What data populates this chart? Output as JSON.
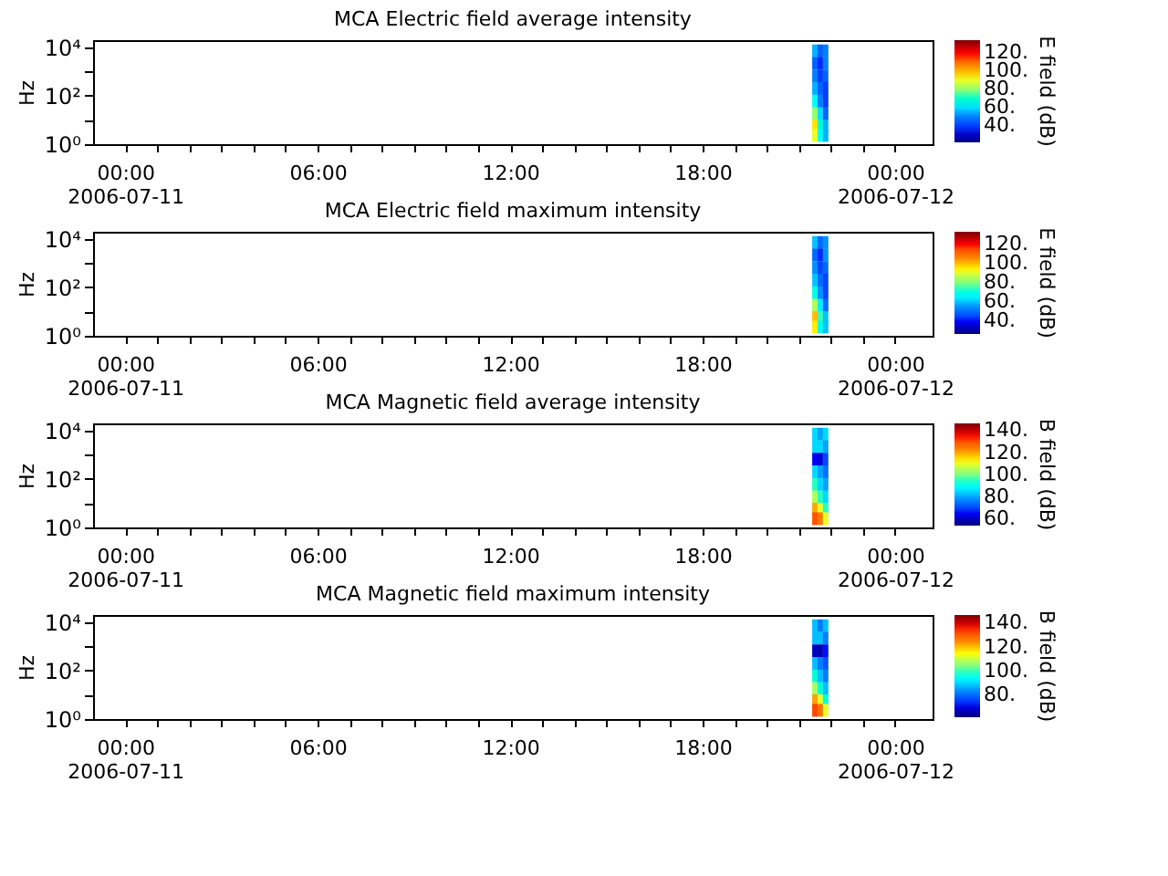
{
  "chart_data": [
    {
      "type": "scatter",
      "marker": "square",
      "title": "MCA  Electric field average intensity",
      "ylabel": "Hz",
      "clabel": "E field (dB)",
      "x": [
        "2006-07-11T21:30",
        "2006-07-11T21:40",
        "2006-07-11T21:50",
        "2006-07-11T21:30",
        "2006-07-11T21:40",
        "2006-07-11T21:50",
        "2006-07-11T21:30",
        "2006-07-11T21:40",
        "2006-07-11T21:50",
        "2006-07-11T21:30",
        "2006-07-11T21:40",
        "2006-07-11T21:50",
        "2006-07-11T21:30",
        "2006-07-11T21:40",
        "2006-07-11T21:50",
        "2006-07-11T21:30",
        "2006-07-11T21:40",
        "2006-07-11T21:50",
        "2006-07-11T21:30",
        "2006-07-11T21:40",
        "2006-07-11T21:50",
        "2006-07-11T21:30",
        "2006-07-11T21:40",
        "2006-07-11T21:50"
      ],
      "values": [
        7200,
        7200,
        7200,
        2200,
        2200,
        2200,
        660,
        660,
        660,
        200,
        200,
        200,
        60,
        60,
        60,
        18,
        18,
        18,
        5.7,
        5.7,
        5.7,
        2.3,
        2.3,
        2.3
      ],
      "cvalues": [
        55,
        45,
        50,
        45,
        38,
        50,
        50,
        40,
        45,
        55,
        45,
        40,
        65,
        50,
        40,
        80,
        60,
        45,
        95,
        70,
        55,
        90,
        65,
        55
      ],
      "xlim": [
        "2006-07-10T23:00",
        "2006-07-12T01:10"
      ],
      "xticks": [
        {
          "value": "2006-07-11T00:00",
          "label": "00:00\n2006-07-11"
        },
        {
          "value": "2006-07-11T01:00",
          "label": null
        },
        {
          "value": "2006-07-11T02:00",
          "label": null
        },
        {
          "value": "2006-07-11T03:00",
          "label": null
        },
        {
          "value": "2006-07-11T04:00",
          "label": null
        },
        {
          "value": "2006-07-11T05:00",
          "label": null
        },
        {
          "value": "2006-07-11T06:00",
          "label": "06:00"
        },
        {
          "value": "2006-07-11T07:00",
          "label": null
        },
        {
          "value": "2006-07-11T08:00",
          "label": null
        },
        {
          "value": "2006-07-11T09:00",
          "label": null
        },
        {
          "value": "2006-07-11T10:00",
          "label": null
        },
        {
          "value": "2006-07-11T11:00",
          "label": null
        },
        {
          "value": "2006-07-11T12:00",
          "label": "12:00"
        },
        {
          "value": "2006-07-11T13:00",
          "label": null
        },
        {
          "value": "2006-07-11T14:00",
          "label": null
        },
        {
          "value": "2006-07-11T15:00",
          "label": null
        },
        {
          "value": "2006-07-11T16:00",
          "label": null
        },
        {
          "value": "2006-07-11T17:00",
          "label": null
        },
        {
          "value": "2006-07-11T18:00",
          "label": "18:00"
        },
        {
          "value": "2006-07-11T19:00",
          "label": null
        },
        {
          "value": "2006-07-11T20:00",
          "label": null
        },
        {
          "value": "2006-07-11T21:00",
          "label": null
        },
        {
          "value": "2006-07-11T22:00",
          "label": null
        },
        {
          "value": "2006-07-11T23:00",
          "label": null
        },
        {
          "value": "2006-07-12T00:00",
          "label": "00:00\n2006-07-12"
        }
      ],
      "ylim": [
        1,
        20000
      ],
      "yticks": [
        {
          "value": 1,
          "label": "10⁰"
        },
        {
          "value": 10,
          "label": null
        },
        {
          "value": 100,
          "label": "10²"
        },
        {
          "value": 1000,
          "label": null
        },
        {
          "value": 10000,
          "label": "10⁴"
        }
      ],
      "log": "y",
      "clim": [
        22,
        134
      ],
      "cticks": [
        {
          "value": 40,
          "label": "40."
        },
        {
          "value": 60,
          "label": "60."
        },
        {
          "value": 80,
          "label": "80."
        },
        {
          "value": 100,
          "label": "100."
        },
        {
          "value": 120,
          "label": "120."
        }
      ]
    },
    {
      "type": "scatter",
      "marker": "square",
      "title": "MCA  Electric field maximum intensity",
      "ylabel": "Hz",
      "clabel": "E field (dB)",
      "x": [
        "2006-07-11T21:30",
        "2006-07-11T21:40",
        "2006-07-11T21:50",
        "2006-07-11T21:30",
        "2006-07-11T21:40",
        "2006-07-11T21:50",
        "2006-07-11T21:30",
        "2006-07-11T21:40",
        "2006-07-11T21:50",
        "2006-07-11T21:30",
        "2006-07-11T21:40",
        "2006-07-11T21:50",
        "2006-07-11T21:30",
        "2006-07-11T21:40",
        "2006-07-11T21:50",
        "2006-07-11T21:30",
        "2006-07-11T21:40",
        "2006-07-11T21:50",
        "2006-07-11T21:30",
        "2006-07-11T21:40",
        "2006-07-11T21:50",
        "2006-07-11T21:30",
        "2006-07-11T21:40",
        "2006-07-11T21:50"
      ],
      "values": [
        7200,
        7200,
        7200,
        2200,
        2200,
        2200,
        660,
        660,
        660,
        200,
        200,
        200,
        60,
        60,
        60,
        18,
        18,
        18,
        5.7,
        5.7,
        5.7,
        2.3,
        2.3,
        2.3
      ],
      "cvalues": [
        60,
        50,
        55,
        50,
        42,
        55,
        55,
        45,
        50,
        60,
        50,
        45,
        70,
        55,
        45,
        85,
        65,
        50,
        100,
        75,
        60,
        95,
        70,
        60
      ],
      "xlim": [
        "2006-07-10T23:00",
        "2006-07-12T01:10"
      ],
      "xticks": [
        {
          "value": "2006-07-11T00:00",
          "label": "00:00\n2006-07-11"
        },
        {
          "value": "2006-07-11T01:00",
          "label": null
        },
        {
          "value": "2006-07-11T02:00",
          "label": null
        },
        {
          "value": "2006-07-11T03:00",
          "label": null
        },
        {
          "value": "2006-07-11T04:00",
          "label": null
        },
        {
          "value": "2006-07-11T05:00",
          "label": null
        },
        {
          "value": "2006-07-11T06:00",
          "label": "06:00"
        },
        {
          "value": "2006-07-11T07:00",
          "label": null
        },
        {
          "value": "2006-07-11T08:00",
          "label": null
        },
        {
          "value": "2006-07-11T09:00",
          "label": null
        },
        {
          "value": "2006-07-11T10:00",
          "label": null
        },
        {
          "value": "2006-07-11T11:00",
          "label": null
        },
        {
          "value": "2006-07-11T12:00",
          "label": "12:00"
        },
        {
          "value": "2006-07-11T13:00",
          "label": null
        },
        {
          "value": "2006-07-11T14:00",
          "label": null
        },
        {
          "value": "2006-07-11T15:00",
          "label": null
        },
        {
          "value": "2006-07-11T16:00",
          "label": null
        },
        {
          "value": "2006-07-11T17:00",
          "label": null
        },
        {
          "value": "2006-07-11T18:00",
          "label": "18:00"
        },
        {
          "value": "2006-07-11T19:00",
          "label": null
        },
        {
          "value": "2006-07-11T20:00",
          "label": null
        },
        {
          "value": "2006-07-11T21:00",
          "label": null
        },
        {
          "value": "2006-07-11T22:00",
          "label": null
        },
        {
          "value": "2006-07-11T23:00",
          "label": null
        },
        {
          "value": "2006-07-12T00:00",
          "label": "00:00\n2006-07-12"
        }
      ],
      "ylim": [
        1,
        20000
      ],
      "yticks": [
        {
          "value": 1,
          "label": "10⁰"
        },
        {
          "value": 10,
          "label": null
        },
        {
          "value": 100,
          "label": "10²"
        },
        {
          "value": 1000,
          "label": null
        },
        {
          "value": 10000,
          "label": "10⁴"
        }
      ],
      "log": "y",
      "clim": [
        27,
        133
      ],
      "cticks": [
        {
          "value": 40,
          "label": "40."
        },
        {
          "value": 60,
          "label": "60."
        },
        {
          "value": 80,
          "label": "80."
        },
        {
          "value": 100,
          "label": "100."
        },
        {
          "value": 120,
          "label": "120."
        }
      ]
    },
    {
      "type": "scatter",
      "marker": "square",
      "title": "MCA  Magnetic field average intensity",
      "ylabel": "Hz",
      "clabel": "B field (dB)",
      "x": [
        "2006-07-11T21:30",
        "2006-07-11T21:40",
        "2006-07-11T21:50",
        "2006-07-11T21:30",
        "2006-07-11T21:40",
        "2006-07-11T21:50",
        "2006-07-11T21:30",
        "2006-07-11T21:40",
        "2006-07-11T21:50",
        "2006-07-11T21:30",
        "2006-07-11T21:40",
        "2006-07-11T21:50",
        "2006-07-11T21:30",
        "2006-07-11T21:40",
        "2006-07-11T21:50",
        "2006-07-11T21:30",
        "2006-07-11T21:40",
        "2006-07-11T21:50",
        "2006-07-11T21:30",
        "2006-07-11T21:40",
        "2006-07-11T21:50",
        "2006-07-11T21:30",
        "2006-07-11T21:40",
        "2006-07-11T21:50"
      ],
      "values": [
        7200,
        7200,
        7200,
        2200,
        2200,
        2200,
        660,
        660,
        660,
        200,
        200,
        200,
        60,
        60,
        60,
        18,
        18,
        18,
        5.7,
        5.7,
        5.7,
        2.3,
        2.3,
        2.3
      ],
      "cvalues": [
        85,
        80,
        85,
        85,
        85,
        80,
        65,
        62,
        70,
        85,
        80,
        75,
        95,
        85,
        80,
        105,
        95,
        85,
        120,
        110,
        95,
        130,
        125,
        110
      ],
      "xlim": [
        "2006-07-10T23:00",
        "2006-07-12T01:10"
      ],
      "xticks": [
        {
          "value": "2006-07-11T00:00",
          "label": "00:00\n2006-07-11"
        },
        {
          "value": "2006-07-11T01:00",
          "label": null
        },
        {
          "value": "2006-07-11T02:00",
          "label": null
        },
        {
          "value": "2006-07-11T03:00",
          "label": null
        },
        {
          "value": "2006-07-11T04:00",
          "label": null
        },
        {
          "value": "2006-07-11T05:00",
          "label": null
        },
        {
          "value": "2006-07-11T06:00",
          "label": "06:00"
        },
        {
          "value": "2006-07-11T07:00",
          "label": null
        },
        {
          "value": "2006-07-11T08:00",
          "label": null
        },
        {
          "value": "2006-07-11T09:00",
          "label": null
        },
        {
          "value": "2006-07-11T10:00",
          "label": null
        },
        {
          "value": "2006-07-11T11:00",
          "label": null
        },
        {
          "value": "2006-07-11T12:00",
          "label": "12:00"
        },
        {
          "value": "2006-07-11T13:00",
          "label": null
        },
        {
          "value": "2006-07-11T14:00",
          "label": null
        },
        {
          "value": "2006-07-11T15:00",
          "label": null
        },
        {
          "value": "2006-07-11T16:00",
          "label": null
        },
        {
          "value": "2006-07-11T17:00",
          "label": null
        },
        {
          "value": "2006-07-11T18:00",
          "label": "18:00"
        },
        {
          "value": "2006-07-11T19:00",
          "label": null
        },
        {
          "value": "2006-07-11T20:00",
          "label": null
        },
        {
          "value": "2006-07-11T21:00",
          "label": null
        },
        {
          "value": "2006-07-11T22:00",
          "label": null
        },
        {
          "value": "2006-07-11T23:00",
          "label": null
        },
        {
          "value": "2006-07-12T00:00",
          "label": "00:00\n2006-07-12"
        }
      ],
      "ylim": [
        1,
        20000
      ],
      "yticks": [
        {
          "value": 1,
          "label": "10⁰"
        },
        {
          "value": 10,
          "label": null
        },
        {
          "value": 100,
          "label": "10²"
        },
        {
          "value": 1000,
          "label": null
        },
        {
          "value": 10000,
          "label": "10⁴"
        }
      ],
      "log": "y",
      "clim": [
        54,
        147
      ],
      "cticks": [
        {
          "value": 60,
          "label": "60."
        },
        {
          "value": 80,
          "label": "80."
        },
        {
          "value": 100,
          "label": "100."
        },
        {
          "value": 120,
          "label": "120."
        },
        {
          "value": 140,
          "label": "140."
        }
      ]
    },
    {
      "type": "scatter",
      "marker": "square",
      "title": "MCA  Magnetic field maximum intensity",
      "ylabel": "Hz",
      "clabel": "B field (dB)",
      "x": [
        "2006-07-11T21:30",
        "2006-07-11T21:40",
        "2006-07-11T21:50",
        "2006-07-11T21:30",
        "2006-07-11T21:40",
        "2006-07-11T21:50",
        "2006-07-11T21:30",
        "2006-07-11T21:40",
        "2006-07-11T21:50",
        "2006-07-11T21:30",
        "2006-07-11T21:40",
        "2006-07-11T21:50",
        "2006-07-11T21:30",
        "2006-07-11T21:40",
        "2006-07-11T21:50",
        "2006-07-11T21:30",
        "2006-07-11T21:40",
        "2006-07-11T21:50",
        "2006-07-11T21:30",
        "2006-07-11T21:40",
        "2006-07-11T21:50",
        "2006-07-11T21:30",
        "2006-07-11T21:40",
        "2006-07-11T21:50"
      ],
      "values": [
        7200,
        7200,
        7200,
        2200,
        2200,
        2200,
        660,
        660,
        660,
        200,
        200,
        200,
        60,
        60,
        60,
        18,
        18,
        18,
        5.7,
        5.7,
        5.7,
        2.3,
        2.3,
        2.3
      ],
      "cvalues": [
        88,
        83,
        88,
        88,
        88,
        83,
        68,
        66,
        73,
        88,
        83,
        78,
        98,
        88,
        83,
        108,
        98,
        88,
        123,
        113,
        98,
        133,
        128,
        113
      ],
      "xlim": [
        "2006-07-10T23:00",
        "2006-07-12T01:10"
      ],
      "xticks": [
        {
          "value": "2006-07-11T00:00",
          "label": "00:00\n2006-07-11"
        },
        {
          "value": "2006-07-11T01:00",
          "label": null
        },
        {
          "value": "2006-07-11T02:00",
          "label": null
        },
        {
          "value": "2006-07-11T03:00",
          "label": null
        },
        {
          "value": "2006-07-11T04:00",
          "label": null
        },
        {
          "value": "2006-07-11T05:00",
          "label": null
        },
        {
          "value": "2006-07-11T06:00",
          "label": "06:00"
        },
        {
          "value": "2006-07-11T07:00",
          "label": null
        },
        {
          "value": "2006-07-11T08:00",
          "label": null
        },
        {
          "value": "2006-07-11T09:00",
          "label": null
        },
        {
          "value": "2006-07-11T10:00",
          "label": null
        },
        {
          "value": "2006-07-11T11:00",
          "label": null
        },
        {
          "value": "2006-07-11T12:00",
          "label": "12:00"
        },
        {
          "value": "2006-07-11T13:00",
          "label": null
        },
        {
          "value": "2006-07-11T14:00",
          "label": null
        },
        {
          "value": "2006-07-11T15:00",
          "label": null
        },
        {
          "value": "2006-07-11T16:00",
          "label": null
        },
        {
          "value": "2006-07-11T17:00",
          "label": null
        },
        {
          "value": "2006-07-11T18:00",
          "label": "18:00"
        },
        {
          "value": "2006-07-11T19:00",
          "label": null
        },
        {
          "value": "2006-07-11T20:00",
          "label": null
        },
        {
          "value": "2006-07-11T21:00",
          "label": null
        },
        {
          "value": "2006-07-11T22:00",
          "label": null
        },
        {
          "value": "2006-07-11T23:00",
          "label": null
        },
        {
          "value": "2006-07-12T00:00",
          "label": "00:00\n2006-07-12"
        }
      ],
      "ylim": [
        1,
        20000
      ],
      "yticks": [
        {
          "value": 1,
          "label": "10⁰"
        },
        {
          "value": 10,
          "label": null
        },
        {
          "value": 100,
          "label": "10²"
        },
        {
          "value": 1000,
          "label": null
        },
        {
          "value": 10000,
          "label": "10⁴"
        }
      ],
      "log": "y",
      "clim": [
        62,
        147
      ],
      "cticks": [
        {
          "value": 80,
          "label": "80."
        },
        {
          "value": 100,
          "label": "100."
        },
        {
          "value": 120,
          "label": "120."
        },
        {
          "value": 140,
          "label": "140."
        }
      ]
    }
  ]
}
